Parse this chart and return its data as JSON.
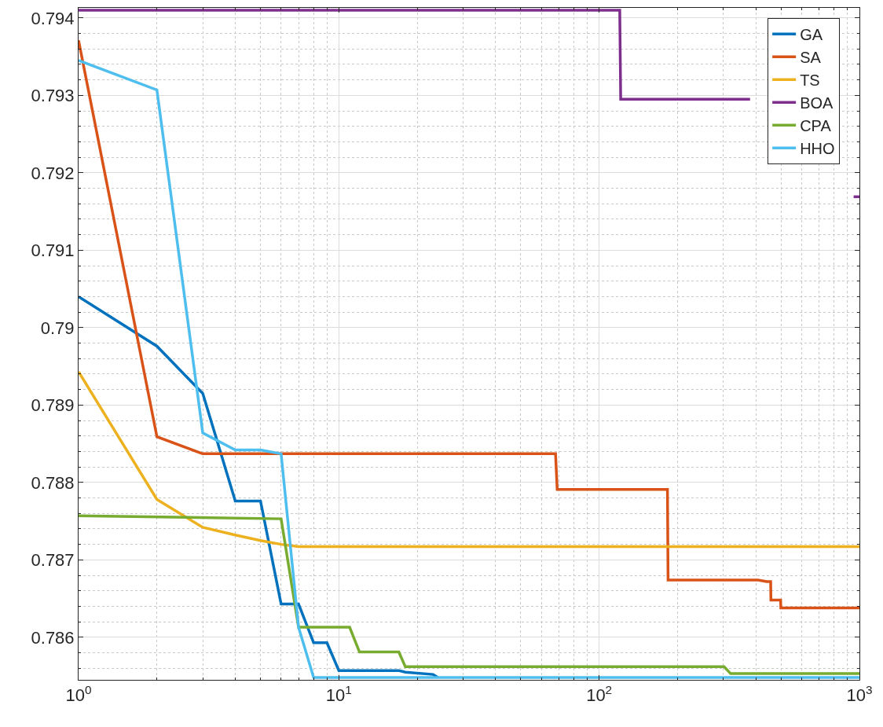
{
  "chart_data": {
    "type": "line",
    "log": "x",
    "grid": true,
    "legend": "top right",
    "line_style": "solid",
    "marker": "none",
    "xlim": [
      1,
      1000
    ],
    "xticks": [
      {
        "value": 1,
        "label": "10$^{0}$"
      },
      {
        "value": 10,
        "label": "10$^{1}$"
      },
      {
        "value": 100,
        "label": "10$^{2}$"
      },
      {
        "value": 1000,
        "label": "10$^{3}$"
      }
    ],
    "ylim": [
      0.78545,
      0.79413
    ],
    "yticks": [
      0.786,
      0.787,
      0.788,
      0.789,
      0.79,
      0.791,
      0.792,
      0.793,
      0.794
    ],
    "series": [
      {
        "name": "GA",
        "color": "#0072bd",
        "x": [
          1,
          2,
          3,
          4,
          5,
          6,
          7,
          8,
          9,
          10,
          17,
          18,
          23,
          24
        ],
        "values": [
          0.7904,
          0.78976,
          0.78915,
          0.78776,
          0.78776,
          0.78643,
          0.78643,
          0.78593,
          0.78593,
          0.78557,
          0.78557,
          0.78555,
          0.78552,
          0.78548
        ]
      },
      {
        "name": "SA",
        "color": "#d95319",
        "x": [
          1,
          2,
          3,
          68,
          69,
          183,
          184,
          408,
          440,
          456,
          457,
          498,
          499,
          1000
        ],
        "values": [
          0.79371,
          0.78859,
          0.78837,
          0.78837,
          0.78791,
          0.78791,
          0.78674,
          0.78674,
          0.78672,
          0.78672,
          0.78648,
          0.78648,
          0.78638,
          0.78638
        ]
      },
      {
        "name": "TS",
        "color": "#edb120",
        "x": [
          1,
          2,
          3,
          4,
          5,
          6,
          7,
          1000
        ],
        "values": [
          0.78943,
          0.78778,
          0.78742,
          0.78732,
          0.78725,
          0.7872,
          0.78717,
          0.78717
        ]
      },
      {
        "name": "BOA",
        "color": "#7e2f8e",
        "x": [
          1,
          120,
          121,
          380,
          600,
          950,
          1000
        ],
        "values": [
          0.7941,
          0.7941,
          0.79295,
          0.79295,
          null,
          0.79169,
          0.79169
        ]
      },
      {
        "name": "CPA",
        "color": "#77ac30",
        "x": [
          1,
          6,
          7,
          11,
          12,
          17,
          18,
          302,
          320,
          1000
        ],
        "values": [
          0.78757,
          0.78753,
          0.78613,
          0.78613,
          0.78581,
          0.78581,
          0.78562,
          0.78562,
          0.78553,
          0.78553
        ]
      },
      {
        "name": "HHO",
        "color": "#4dbeee",
        "x": [
          1,
          2,
          3,
          4,
          5,
          6,
          7,
          8,
          1000
        ],
        "values": [
          0.79345,
          0.79307,
          0.78864,
          0.78842,
          0.78842,
          0.78837,
          0.78613,
          0.78548,
          0.78548
        ]
      }
    ]
  }
}
